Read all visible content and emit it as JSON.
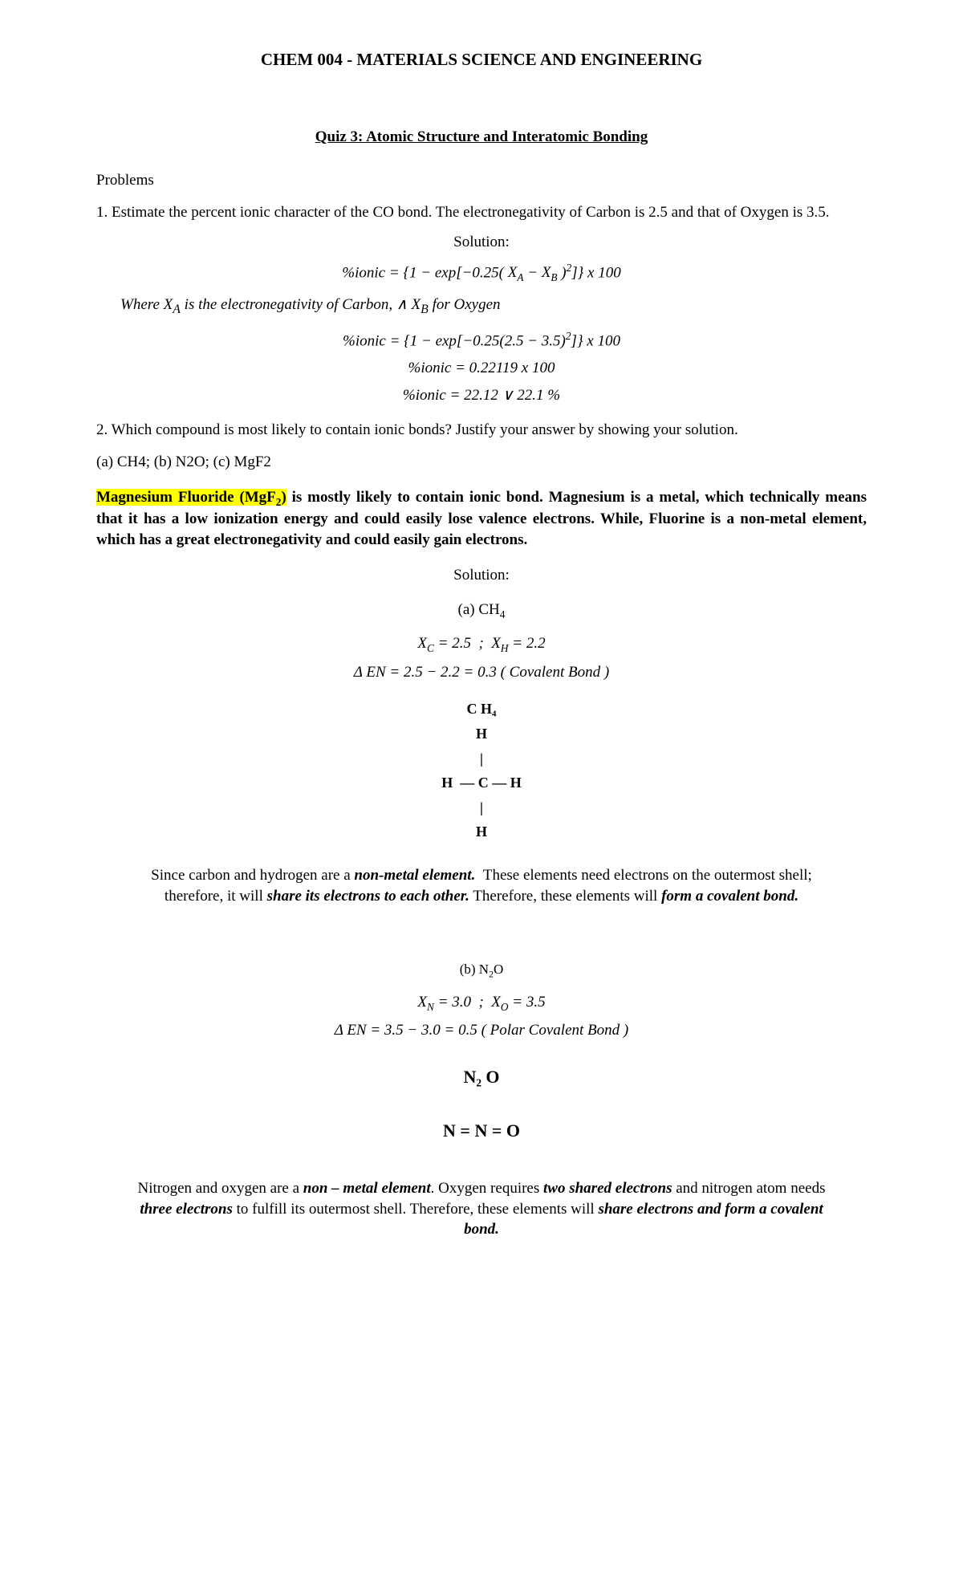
{
  "header": {
    "course": "CHEM 004 - MATERIALS SCIENCE AND ENGINEERING",
    "quiz_title": "Quiz 3: Atomic Structure and Interatomic Bonding",
    "problems_label": "Problems"
  },
  "q1": {
    "text": "1. Estimate the percent ionic character of the CO bond. The electronegativity of Carbon is 2.5 and that of Oxygen is 3.5.",
    "solution_label": "Solution:",
    "formula_generic_html": "%<i>ionic</i> = {1 − exp[−0.25( <i>X<sub>A</sub></i> − <i>X<sub>B</sub></i> )<sup>2</sup>]} <i>x</i> 100",
    "where_html": "Where X<sub>A</sub> is the electronegativity of Carbon, ∧ X<sub>B</sub> for Oxygen",
    "formula_sub_html": "%<i>ionic</i> = {1 − exp[−0.25(2.5 − 3.5)<sup>2</sup>]} <i>x</i> 100",
    "step2_html": "%<i>ionic</i> = 0.22119 <i>x</i> 100",
    "result_html": "%<i>ionic</i> = 22.12 ∨ 22.1 %"
  },
  "q2": {
    "text": "2. Which compound is most likely to contain ionic bonds? Justify your answer by showing your solution.",
    "options": "(a) CH4; (b) N2O; (c) MgF2",
    "answer_highlight_html": "Magnesium Fluoride (MgF<sub class=\"chem\">2</sub>)",
    "answer_rest": " is mostly likely to contain ionic bond. Magnesium is a metal, which technically means that it has a low ionization energy and could easily lose valence electrons. While, Fluorine is a non-metal element, which has a great electronegativity and could easily gain electrons.",
    "solution_label": "Solution:",
    "partA": {
      "label_html": "(a) CH<sub class=\"chem\">4</sub>",
      "en_html": "<i>X<sub>C</sub></i> = 2.5&nbsp;&nbsp;;&nbsp;&nbsp;<i>X<sub>H</sub></i> = 2.2",
      "delta_html": "Δ <i>EN</i> = 2.5 − 2.2 = 0.3 ( <i>Covalent Bond</i> )",
      "lewis_title": "C H₄",
      "explain_html": "Since carbon and hydrogen are a <span class=\"bi\">non-metal element.</span>&nbsp;&nbsp;These elements need electrons on the outermost shell; therefore, it will <span class=\"bi\">share its electrons to each other.</span> Therefore, these elements will <span class=\"bi\">form a covalent bond.</span>"
    },
    "partB": {
      "label_html": "(b) N<sub class=\"chem\">2</sub>O",
      "en_html": "<i>X<sub>N</sub></i> = 3.0&nbsp;&nbsp;;&nbsp;&nbsp;<i>X<sub>O</sub></i> = 3.5",
      "delta_html": "Δ <i>EN</i> = 3.5 − 3.0 = 0.5 ( <i>Polar Covalent Bond</i> )",
      "lewis_title": "N₂ O",
      "lewis_line": "N = N = O",
      "explain_html": "Nitrogen and oxygen are a <span class=\"bi\">non – metal element</span>. Oxygen requires <span class=\"bi\">two shared electrons</span> and nitrogen atom needs <span class=\"bi\">three electrons</span> to fulfill its outermost shell. Therefore, these elements will <span class=\"bi\">share electrons and form a covalent bond.</span>"
    }
  }
}
